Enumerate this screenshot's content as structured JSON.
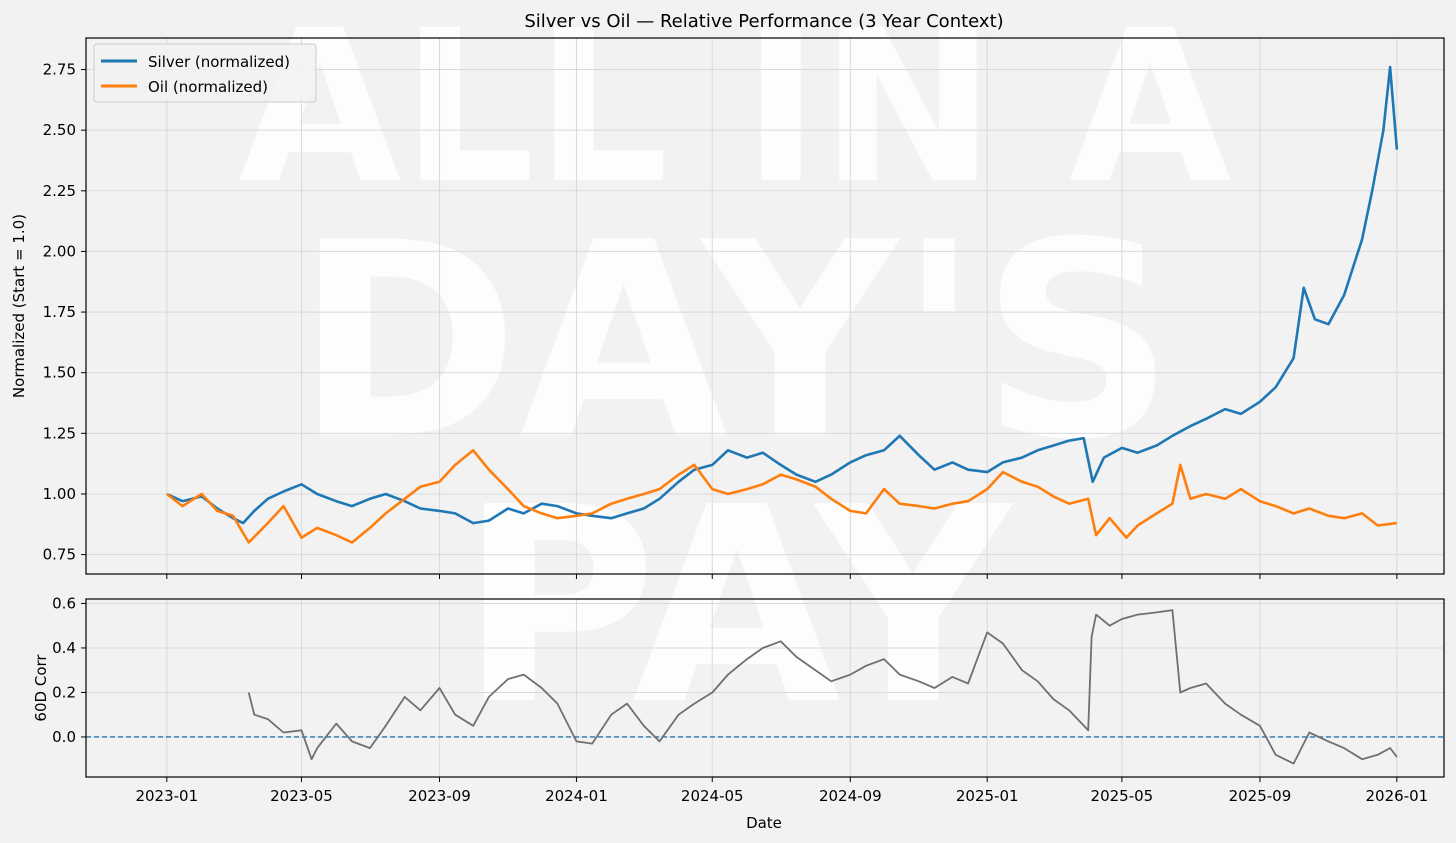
{
  "watermark": {
    "line1": "ALL IN A",
    "line2": "DAY'S",
    "line3": "PAY"
  },
  "chart_data": [
    {
      "type": "line",
      "title": "Silver vs Oil — Relative Performance (3 Year Context)",
      "ylabel": "Normalized (Start = 1.0)",
      "xlabel": "",
      "x_range": [
        "2022-10-21",
        "2026-02-12"
      ],
      "ylim": [
        0.67,
        2.88
      ],
      "yticks": [
        0.75,
        1.0,
        1.25,
        1.5,
        1.75,
        2.0,
        2.25,
        2.5,
        2.75
      ],
      "ytick_labels": [
        "0.75",
        "1.00",
        "1.25",
        "1.50",
        "1.75",
        "2.00",
        "2.25",
        "2.50",
        "2.75"
      ],
      "grid": true,
      "legend": "upper-left",
      "series": [
        {
          "name": "Silver (normalized)",
          "color": "#1f77b4",
          "x": [
            "2023-01-01",
            "2023-01-15",
            "2023-02-01",
            "2023-02-15",
            "2023-03-01",
            "2023-03-10",
            "2023-03-20",
            "2023-04-01",
            "2023-04-15",
            "2023-05-01",
            "2023-05-15",
            "2023-06-01",
            "2023-06-15",
            "2023-07-01",
            "2023-07-15",
            "2023-08-01",
            "2023-08-15",
            "2023-09-01",
            "2023-09-15",
            "2023-10-01",
            "2023-10-15",
            "2023-11-01",
            "2023-11-15",
            "2023-12-01",
            "2023-12-15",
            "2024-01-01",
            "2024-01-15",
            "2024-02-01",
            "2024-02-15",
            "2024-03-01",
            "2024-03-15",
            "2024-04-01",
            "2024-04-15",
            "2024-05-01",
            "2024-05-15",
            "2024-06-01",
            "2024-06-15",
            "2024-07-01",
            "2024-07-15",
            "2024-08-01",
            "2024-08-15",
            "2024-09-01",
            "2024-09-15",
            "2024-10-01",
            "2024-10-15",
            "2024-11-01",
            "2024-11-15",
            "2024-12-01",
            "2024-12-15",
            "2025-01-01",
            "2025-01-15",
            "2025-02-01",
            "2025-02-15",
            "2025-03-01",
            "2025-03-15",
            "2025-03-28",
            "2025-04-05",
            "2025-04-15",
            "2025-05-01",
            "2025-05-15",
            "2025-06-01",
            "2025-06-15",
            "2025-07-01",
            "2025-07-15",
            "2025-08-01",
            "2025-08-15",
            "2025-09-01",
            "2025-09-15",
            "2025-10-01",
            "2025-10-10",
            "2025-10-20",
            "2025-11-01",
            "2025-11-15",
            "2025-12-01",
            "2025-12-10",
            "2025-12-20",
            "2025-12-26",
            "2026-01-01"
          ],
          "values": [
            1.0,
            0.97,
            0.99,
            0.94,
            0.9,
            0.88,
            0.93,
            0.98,
            1.01,
            1.04,
            1.0,
            0.97,
            0.95,
            0.98,
            1.0,
            0.97,
            0.94,
            0.93,
            0.92,
            0.88,
            0.89,
            0.94,
            0.92,
            0.96,
            0.95,
            0.92,
            0.91,
            0.9,
            0.92,
            0.94,
            0.98,
            1.05,
            1.1,
            1.12,
            1.18,
            1.15,
            1.17,
            1.12,
            1.08,
            1.05,
            1.08,
            1.13,
            1.16,
            1.18,
            1.24,
            1.16,
            1.1,
            1.13,
            1.1,
            1.09,
            1.13,
            1.15,
            1.18,
            1.2,
            1.22,
            1.23,
            1.05,
            1.15,
            1.19,
            1.17,
            1.2,
            1.24,
            1.28,
            1.31,
            1.35,
            1.33,
            1.38,
            1.44,
            1.56,
            1.85,
            1.72,
            1.7,
            1.82,
            2.05,
            2.25,
            2.5,
            2.76,
            2.42
          ]
        },
        {
          "name": "Oil (normalized)",
          "color": "#ff7f0e",
          "x": [
            "2023-01-01",
            "2023-01-15",
            "2023-02-01",
            "2023-02-15",
            "2023-03-01",
            "2023-03-15",
            "2023-04-01",
            "2023-04-15",
            "2023-05-01",
            "2023-05-15",
            "2023-06-01",
            "2023-06-15",
            "2023-07-01",
            "2023-07-15",
            "2023-08-01",
            "2023-08-15",
            "2023-09-01",
            "2023-09-15",
            "2023-10-01",
            "2023-10-15",
            "2023-11-01",
            "2023-11-15",
            "2023-12-01",
            "2023-12-15",
            "2024-01-01",
            "2024-01-15",
            "2024-02-01",
            "2024-02-15",
            "2024-03-01",
            "2024-03-15",
            "2024-04-01",
            "2024-04-15",
            "2024-05-01",
            "2024-05-15",
            "2024-06-01",
            "2024-06-15",
            "2024-07-01",
            "2024-07-15",
            "2024-08-01",
            "2024-08-15",
            "2024-09-01",
            "2024-09-15",
            "2024-10-01",
            "2024-10-15",
            "2024-11-01",
            "2024-11-15",
            "2024-12-01",
            "2024-12-15",
            "2025-01-01",
            "2025-01-15",
            "2025-02-01",
            "2025-02-15",
            "2025-03-01",
            "2025-03-15",
            "2025-04-01",
            "2025-04-08",
            "2025-04-20",
            "2025-05-05",
            "2025-05-15",
            "2025-06-01",
            "2025-06-15",
            "2025-06-22",
            "2025-07-01",
            "2025-07-15",
            "2025-08-01",
            "2025-08-15",
            "2025-09-01",
            "2025-09-15",
            "2025-10-01",
            "2025-10-15",
            "2025-11-01",
            "2025-11-15",
            "2025-12-01",
            "2025-12-15",
            "2026-01-01"
          ],
          "values": [
            1.0,
            0.95,
            1.0,
            0.93,
            0.91,
            0.8,
            0.88,
            0.95,
            0.82,
            0.86,
            0.83,
            0.8,
            0.86,
            0.92,
            0.98,
            1.03,
            1.05,
            1.12,
            1.18,
            1.1,
            1.02,
            0.95,
            0.92,
            0.9,
            0.91,
            0.92,
            0.96,
            0.98,
            1.0,
            1.02,
            1.08,
            1.12,
            1.02,
            1.0,
            1.02,
            1.04,
            1.08,
            1.06,
            1.03,
            0.98,
            0.93,
            0.92,
            1.02,
            0.96,
            0.95,
            0.94,
            0.96,
            0.97,
            1.02,
            1.09,
            1.05,
            1.03,
            0.99,
            0.96,
            0.98,
            0.83,
            0.9,
            0.82,
            0.87,
            0.92,
            0.96,
            1.12,
            0.98,
            1.0,
            0.98,
            1.02,
            0.97,
            0.95,
            0.92,
            0.94,
            0.91,
            0.9,
            0.92,
            0.87,
            0.88
          ]
        }
      ]
    },
    {
      "type": "line",
      "title": "",
      "ylabel": "60D Corr",
      "xlabel": "Date",
      "x_range": [
        "2022-10-21",
        "2026-02-12"
      ],
      "ylim": [
        -0.18,
        0.62
      ],
      "yticks": [
        0.0,
        0.2,
        0.4,
        0.6
      ],
      "ytick_labels": [
        "0.0",
        "0.2",
        "0.4",
        "0.6"
      ],
      "xticks": [
        "2023-01-01",
        "2023-05-01",
        "2023-09-01",
        "2024-01-01",
        "2024-05-01",
        "2024-09-01",
        "2025-01-01",
        "2025-05-01",
        "2025-09-01",
        "2026-01-01"
      ],
      "xtick_labels": [
        "2023-01",
        "2023-05",
        "2023-09",
        "2024-01",
        "2024-05",
        "2024-09",
        "2025-01",
        "2025-05",
        "2025-09",
        "2026-01"
      ],
      "grid": true,
      "reference_line": {
        "y": 0.0,
        "style": "dashed",
        "color": "#1f77b4"
      },
      "series": [
        {
          "name": "",
          "color": "#707070",
          "x": [
            "2023-03-15",
            "2023-03-20",
            "2023-04-01",
            "2023-04-15",
            "2023-05-01",
            "2023-05-10",
            "2023-05-15",
            "2023-06-01",
            "2023-06-15",
            "2023-07-01",
            "2023-07-15",
            "2023-08-01",
            "2023-08-15",
            "2023-09-01",
            "2023-09-15",
            "2023-10-01",
            "2023-10-15",
            "2023-11-01",
            "2023-11-15",
            "2023-12-01",
            "2023-12-15",
            "2024-01-01",
            "2024-01-15",
            "2024-02-01",
            "2024-02-15",
            "2024-03-01",
            "2024-03-15",
            "2024-04-01",
            "2024-04-15",
            "2024-05-01",
            "2024-05-15",
            "2024-06-01",
            "2024-06-15",
            "2024-07-01",
            "2024-07-15",
            "2024-08-01",
            "2024-08-15",
            "2024-09-01",
            "2024-09-15",
            "2024-10-01",
            "2024-10-15",
            "2024-11-01",
            "2024-11-15",
            "2024-12-01",
            "2024-12-15",
            "2025-01-01",
            "2025-01-15",
            "2025-02-01",
            "2025-02-15",
            "2025-03-01",
            "2025-03-15",
            "2025-04-01",
            "2025-04-04",
            "2025-04-08",
            "2025-04-20",
            "2025-05-01",
            "2025-05-15",
            "2025-06-01",
            "2025-06-15",
            "2025-06-22",
            "2025-07-01",
            "2025-07-15",
            "2025-08-01",
            "2025-08-15",
            "2025-09-01",
            "2025-09-15",
            "2025-10-01",
            "2025-10-15",
            "2025-11-01",
            "2025-11-15",
            "2025-12-01",
            "2025-12-15",
            "2025-12-26",
            "2026-01-01"
          ],
          "values": [
            0.2,
            0.1,
            0.08,
            0.02,
            0.03,
            -0.1,
            -0.05,
            0.06,
            -0.02,
            -0.05,
            0.05,
            0.18,
            0.12,
            0.22,
            0.1,
            0.05,
            0.18,
            0.26,
            0.28,
            0.22,
            0.15,
            -0.02,
            -0.03,
            0.1,
            0.15,
            0.05,
            -0.02,
            0.1,
            0.15,
            0.2,
            0.28,
            0.35,
            0.4,
            0.43,
            0.36,
            0.3,
            0.25,
            0.28,
            0.32,
            0.35,
            0.28,
            0.25,
            0.22,
            0.27,
            0.24,
            0.47,
            0.42,
            0.3,
            0.25,
            0.17,
            0.12,
            0.03,
            0.45,
            0.55,
            0.5,
            0.53,
            0.55,
            0.56,
            0.57,
            0.2,
            0.22,
            0.24,
            0.15,
            0.1,
            0.05,
            -0.08,
            -0.12,
            0.02,
            -0.02,
            -0.05,
            -0.1,
            -0.08,
            -0.05,
            -0.09
          ]
        }
      ]
    }
  ]
}
